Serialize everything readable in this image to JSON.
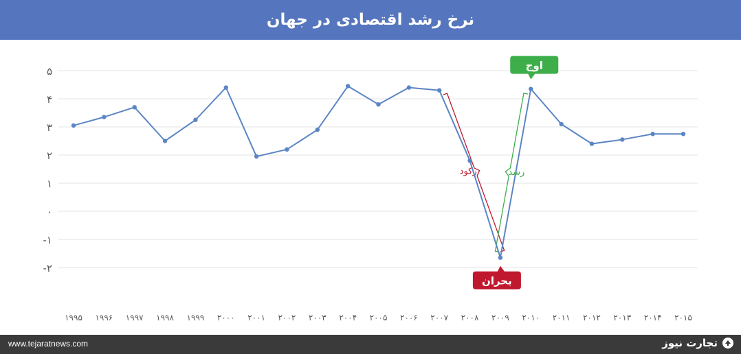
{
  "header": {
    "title": "نرخ رشد اقتصادی در جهان"
  },
  "footer": {
    "url": "www.tejaratnews.com",
    "brand": "تجارت نیوز"
  },
  "colors": {
    "header_bg": "#5576be",
    "line": "#5b85c4",
    "recession": "#c0182e",
    "growth": "#3dae49",
    "footer_bg": "#3a3a3a"
  },
  "chart_data": {
    "type": "line",
    "title": "نرخ رشد اقتصادی در جهان",
    "xlabel": "",
    "ylabel": "",
    "categories": [
      "۱۹۹۵",
      "۱۹۹۶",
      "۱۹۹۷",
      "۱۹۹۸",
      "۱۹۹۹",
      "۲۰۰۰",
      "۲۰۰۱",
      "۲۰۰۲",
      "۲۰۰۳",
      "۲۰۰۴",
      "۲۰۰۵",
      "۲۰۰۶",
      "۲۰۰۷",
      "۲۰۰۸",
      "۲۰۰۹",
      "۲۰۱۰",
      "۲۰۱۱",
      "۲۰۱۲",
      "۲۰۱۳",
      "۲۰۱۴",
      "۲۰۱۵"
    ],
    "series": [
      {
        "values": [
          3.05,
          3.35,
          3.7,
          2.5,
          3.25,
          4.4,
          1.95,
          2.2,
          2.9,
          4.45,
          3.8,
          4.4,
          4.3,
          1.8,
          -1.65,
          4.35,
          3.1,
          2.4,
          2.55,
          2.75,
          2.75
        ]
      }
    ],
    "ylim": [
      -2,
      5
    ],
    "yticks": [
      {
        "value": 5,
        "label": "۵"
      },
      {
        "value": 4,
        "label": "۴"
      },
      {
        "value": 3,
        "label": "۳"
      },
      {
        "value": 2,
        "label": "۲"
      },
      {
        "value": 1,
        "label": "۱"
      },
      {
        "value": 0,
        "label": "۰"
      },
      {
        "value": -1,
        "label": "-۱"
      },
      {
        "value": -2,
        "label": "-۲"
      }
    ],
    "grid": true,
    "annotations": {
      "peak": "اوج",
      "crisis": "بحران",
      "recession": "رکود",
      "growth": "رشد"
    }
  }
}
